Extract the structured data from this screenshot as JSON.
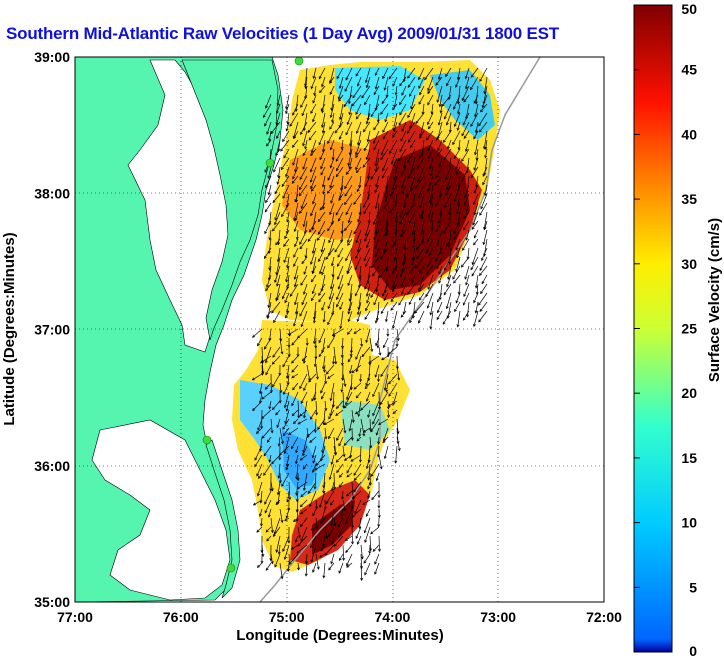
{
  "title": "Southern Mid-Atlantic Raw Velocities (1 Day Avg) 2009/01/31 1800 EST",
  "map": {
    "xlabel": "Longitude (Degrees:Minutes)",
    "ylabel": "Latitude (Degrees:Minutes)",
    "lon_range": [
      -77,
      -72
    ],
    "lat_range": [
      35,
      39
    ],
    "lon_ticks": [
      "77:00",
      "76:00",
      "75:00",
      "74:00",
      "73:00",
      "72:00"
    ],
    "lat_ticks": [
      "39:00",
      "38:00",
      "37:00",
      "36:00",
      "35:00"
    ],
    "grid": "dotted",
    "land_color": "#55f5b0",
    "water_color": "#ffffff",
    "site_marker_color": "#3ddc3d"
  },
  "colorbar": {
    "label": "Surface Velocity (cm/s)",
    "min": 0,
    "max": 50,
    "ticks": [
      "50",
      "45",
      "40",
      "35",
      "30",
      "25",
      "20",
      "15",
      "10",
      "5",
      "0"
    ],
    "colormap": "jet"
  }
}
